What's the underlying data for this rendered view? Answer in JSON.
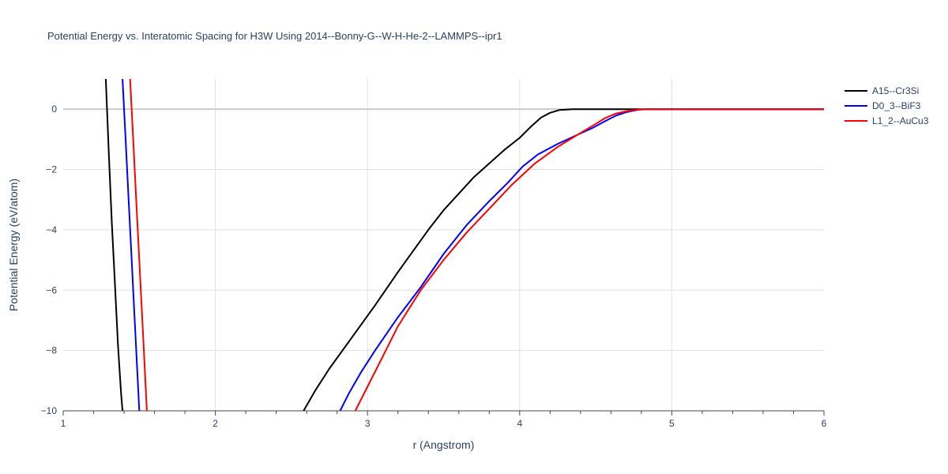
{
  "chart_data": {
    "type": "line",
    "title": "Potential Energy vs. Interatomic Spacing for H3W Using 2014--Bonny-G--W-H-He-2--LAMMPS--ipr1",
    "xlabel": "r (Angstrom)",
    "ylabel": "Potential Energy (eV/atom)",
    "xlim": [
      1,
      6
    ],
    "ylim": [
      -10,
      1
    ],
    "x_ticks": [
      1,
      2,
      3,
      4,
      5,
      6
    ],
    "y_ticks": [
      0,
      -2,
      -4,
      -6,
      -8,
      -10
    ],
    "x_tick_labels": [
      "1",
      "2",
      "3",
      "4",
      "5",
      "6"
    ],
    "y_tick_labels": [
      "0",
      "−2",
      "−4",
      "−6",
      "−8",
      "−10"
    ],
    "grid": true,
    "legend_position": "top-right",
    "series": [
      {
        "name": "A15--Cr3Si",
        "color": "#000000",
        "segments": [
          [
            [
              1.28,
              1.0
            ],
            [
              1.3,
              -1.5
            ],
            [
              1.32,
              -3.8
            ],
            [
              1.34,
              -5.8
            ],
            [
              1.36,
              -7.8
            ],
            [
              1.38,
              -9.4
            ],
            [
              1.39,
              -10.0
            ]
          ],
          [
            [
              2.58,
              -10.0
            ],
            [
              2.66,
              -9.3
            ],
            [
              2.75,
              -8.6
            ],
            [
              2.85,
              -7.9
            ],
            [
              2.95,
              -7.2
            ],
            [
              3.05,
              -6.5
            ],
            [
              3.2,
              -5.4
            ],
            [
              3.4,
              -4.0
            ],
            [
              3.5,
              -3.35
            ],
            [
              3.6,
              -2.8
            ],
            [
              3.7,
              -2.25
            ],
            [
              3.8,
              -1.8
            ],
            [
              3.9,
              -1.35
            ],
            [
              4.0,
              -0.95
            ],
            [
              4.08,
              -0.55
            ],
            [
              4.14,
              -0.28
            ],
            [
              4.2,
              -0.12
            ],
            [
              4.26,
              -0.03
            ],
            [
              4.35,
              0.0
            ],
            [
              6.0,
              0.0
            ]
          ]
        ]
      },
      {
        "name": "D0_3--BiF3",
        "color": "#0000ff",
        "segments": [
          [
            [
              1.39,
              1.0
            ],
            [
              1.41,
              -1.0
            ],
            [
              1.43,
              -3.0
            ],
            [
              1.45,
              -5.0
            ],
            [
              1.47,
              -7.0
            ],
            [
              1.49,
              -9.0
            ],
            [
              1.5,
              -10.0
            ]
          ],
          [
            [
              2.82,
              -10.0
            ],
            [
              2.88,
              -9.4
            ],
            [
              2.96,
              -8.7
            ],
            [
              3.05,
              -8.0
            ],
            [
              3.2,
              -6.9
            ],
            [
              3.35,
              -5.9
            ],
            [
              3.5,
              -4.8
            ],
            [
              3.65,
              -3.85
            ],
            [
              3.8,
              -3.05
            ],
            [
              3.92,
              -2.45
            ],
            [
              4.02,
              -1.9
            ],
            [
              4.12,
              -1.5
            ],
            [
              4.25,
              -1.15
            ],
            [
              4.38,
              -0.85
            ],
            [
              4.48,
              -0.62
            ],
            [
              4.56,
              -0.4
            ],
            [
              4.63,
              -0.22
            ],
            [
              4.7,
              -0.1
            ],
            [
              4.78,
              -0.02
            ],
            [
              4.85,
              0.0
            ],
            [
              6.0,
              0.0
            ]
          ]
        ]
      },
      {
        "name": "L1_2--AuCu3",
        "color": "#ff0000",
        "segments": [
          [
            [
              1.44,
              1.0
            ],
            [
              1.46,
              -1.0
            ],
            [
              1.48,
              -3.0
            ],
            [
              1.5,
              -5.0
            ],
            [
              1.52,
              -7.0
            ],
            [
              1.54,
              -9.0
            ],
            [
              1.55,
              -10.0
            ]
          ],
          [
            [
              2.92,
              -10.0
            ],
            [
              3.0,
              -9.2
            ],
            [
              3.1,
              -8.2
            ],
            [
              3.2,
              -7.2
            ],
            [
              3.35,
              -6.0
            ],
            [
              3.5,
              -5.0
            ],
            [
              3.65,
              -4.1
            ],
            [
              3.8,
              -3.3
            ],
            [
              3.95,
              -2.5
            ],
            [
              4.1,
              -1.8
            ],
            [
              4.25,
              -1.25
            ],
            [
              4.38,
              -0.85
            ],
            [
              4.48,
              -0.55
            ],
            [
              4.56,
              -0.3
            ],
            [
              4.63,
              -0.15
            ],
            [
              4.7,
              -0.07
            ],
            [
              4.78,
              -0.01
            ],
            [
              4.85,
              0.0
            ],
            [
              6.0,
              0.0
            ]
          ]
        ]
      }
    ]
  }
}
